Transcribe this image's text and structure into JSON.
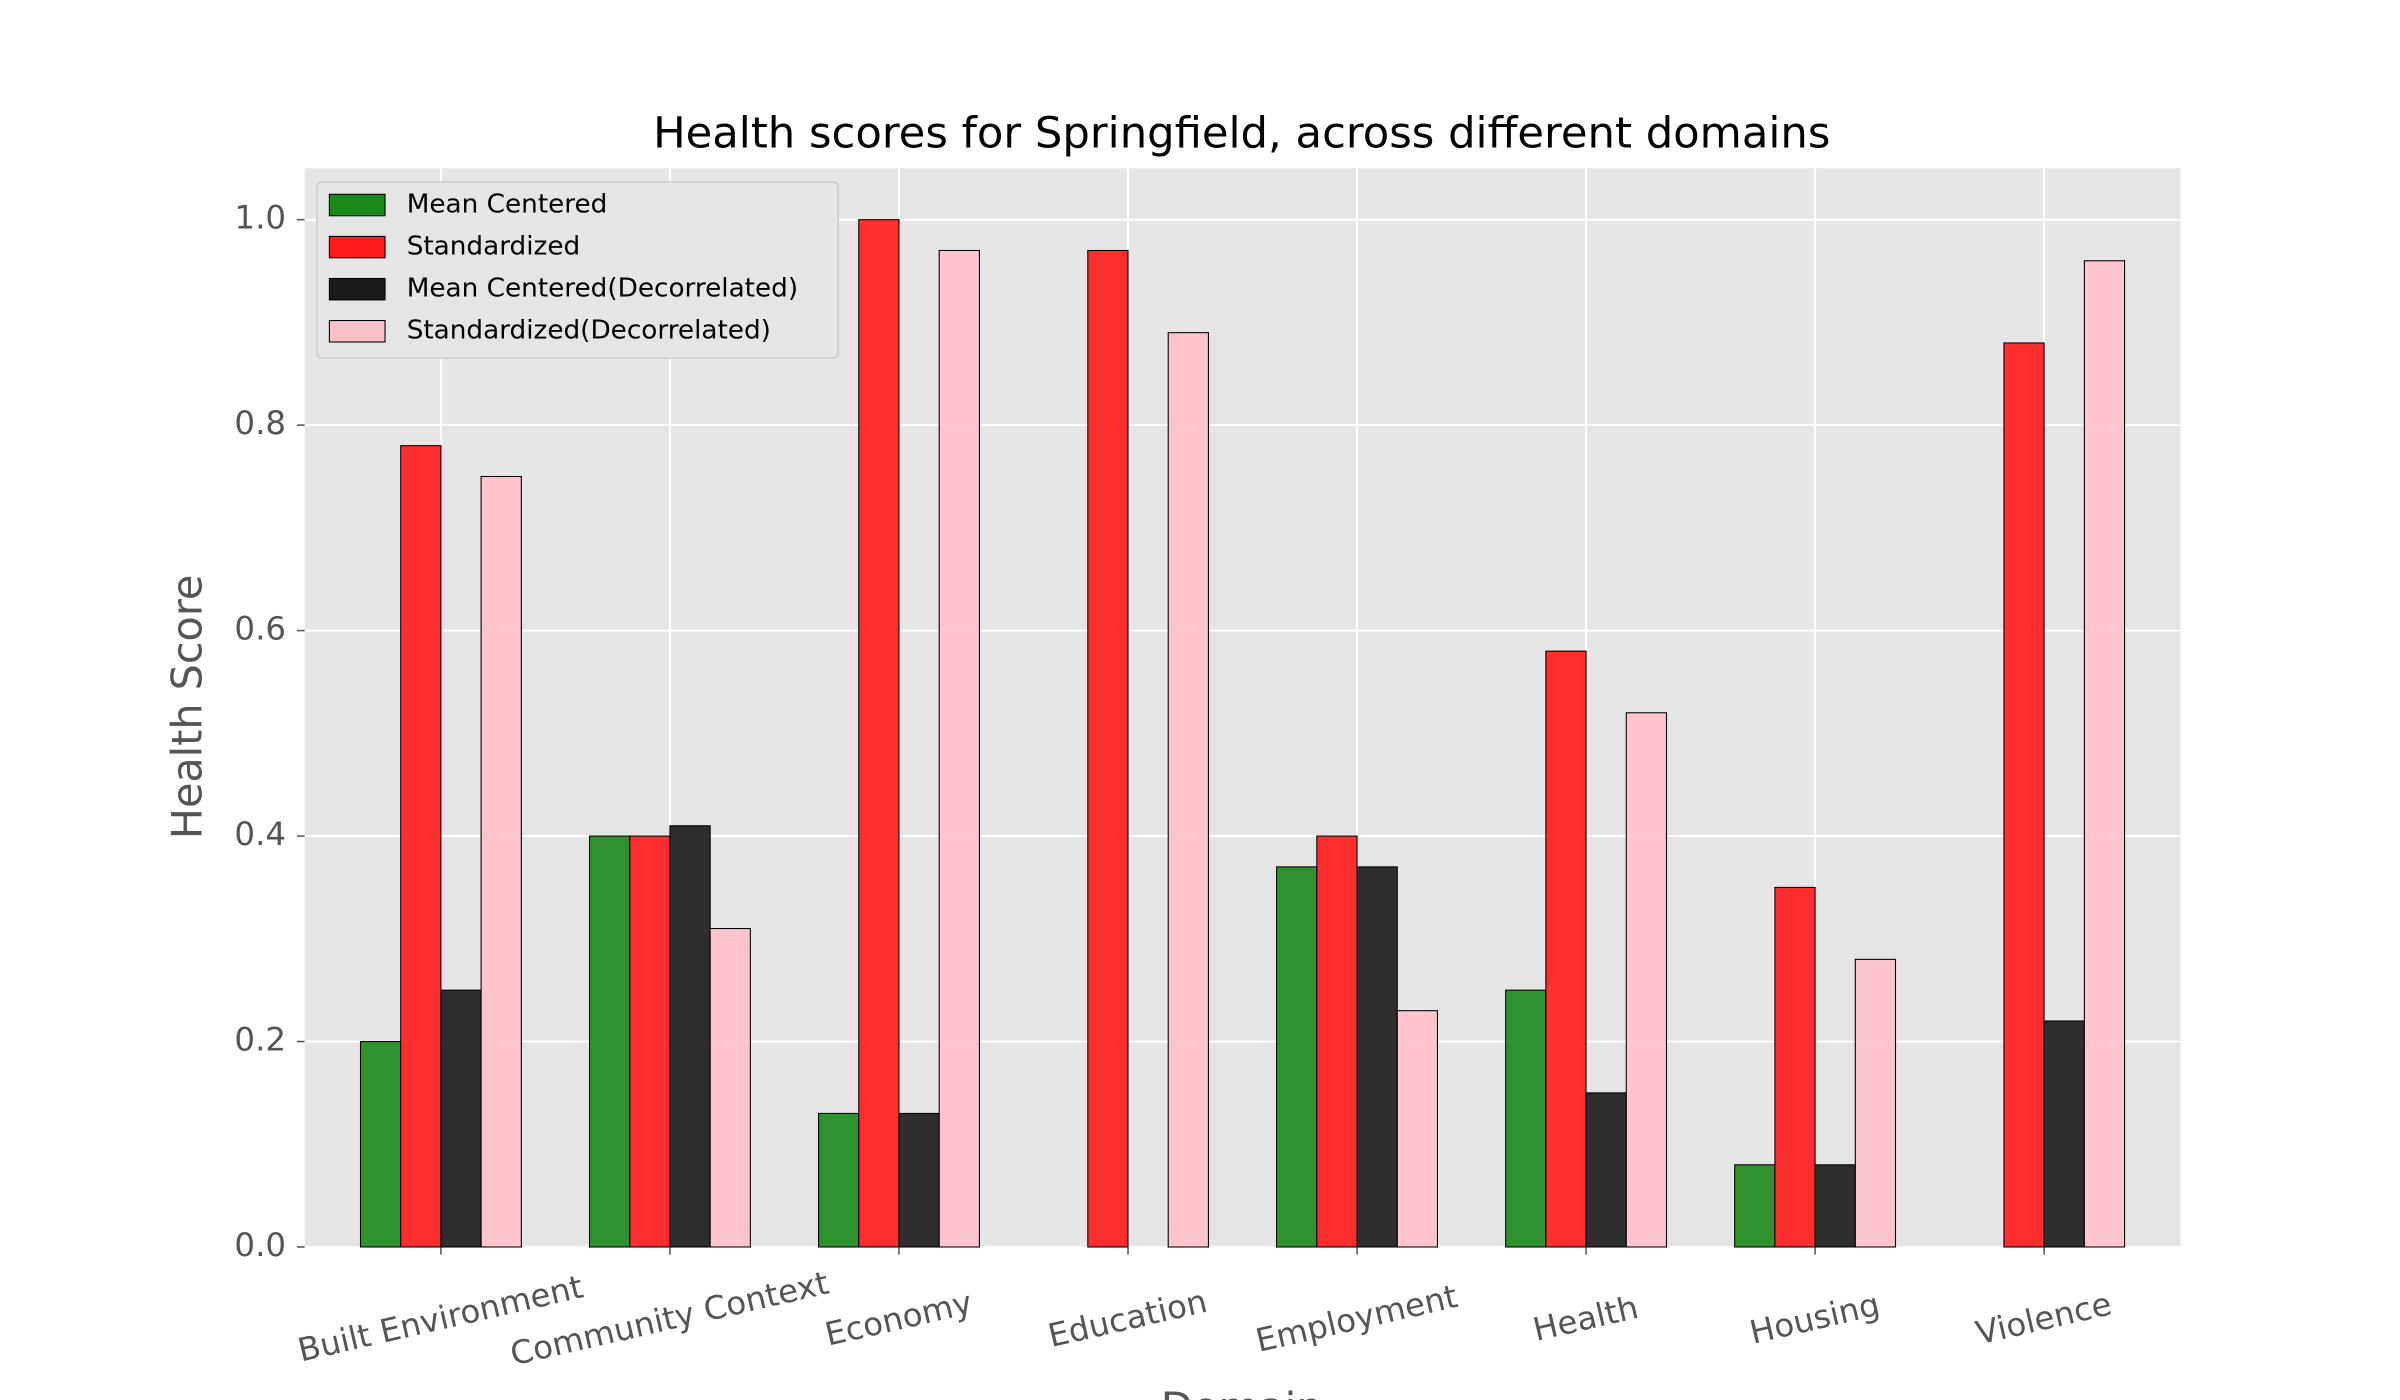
{
  "chart_data": {
    "type": "bar",
    "title": "Health scores for Springfield, across different domains",
    "x_label": "Domain",
    "y_label": "Health Score",
    "categories": [
      "Built Environment",
      "Community Context",
      "Economy",
      "Education",
      "Employment",
      "Health",
      "Housing",
      "Violence"
    ],
    "series": [
      {
        "name": "Mean Centered",
        "color": "#1a8a1a",
        "values": [
          0.2,
          0.4,
          0.13,
          0,
          0.37,
          0.25,
          0.08,
          0
        ]
      },
      {
        "name": "Standardized",
        "color": "#ff1a1a",
        "values": [
          0.78,
          0.4,
          1.0,
          0.97,
          0.4,
          0.58,
          0.35,
          0.88
        ]
      },
      {
        "name": "Mean Centered(Decorrelated)",
        "color": "#1a1a1a",
        "values": [
          0.25,
          0.41,
          0.13,
          0,
          0.37,
          0.15,
          0.08,
          0.22
        ]
      },
      {
        "name": "Standardized(Decorrelated)",
        "color": "#ffc0cb",
        "values": [
          0.75,
          0.31,
          0.97,
          0.89,
          0.23,
          0.52,
          0.28,
          0.96
        ]
      }
    ],
    "ylim": [
      0,
      1.05
    ],
    "yticks": [
      {
        "value": 0,
        "label": "0.0"
      },
      0.2,
      0.4,
      0.6,
      0.8,
      {
        "value": 1,
        "label": "1.0"
      }
    ],
    "grid": true,
    "legend": "upper-left"
  }
}
